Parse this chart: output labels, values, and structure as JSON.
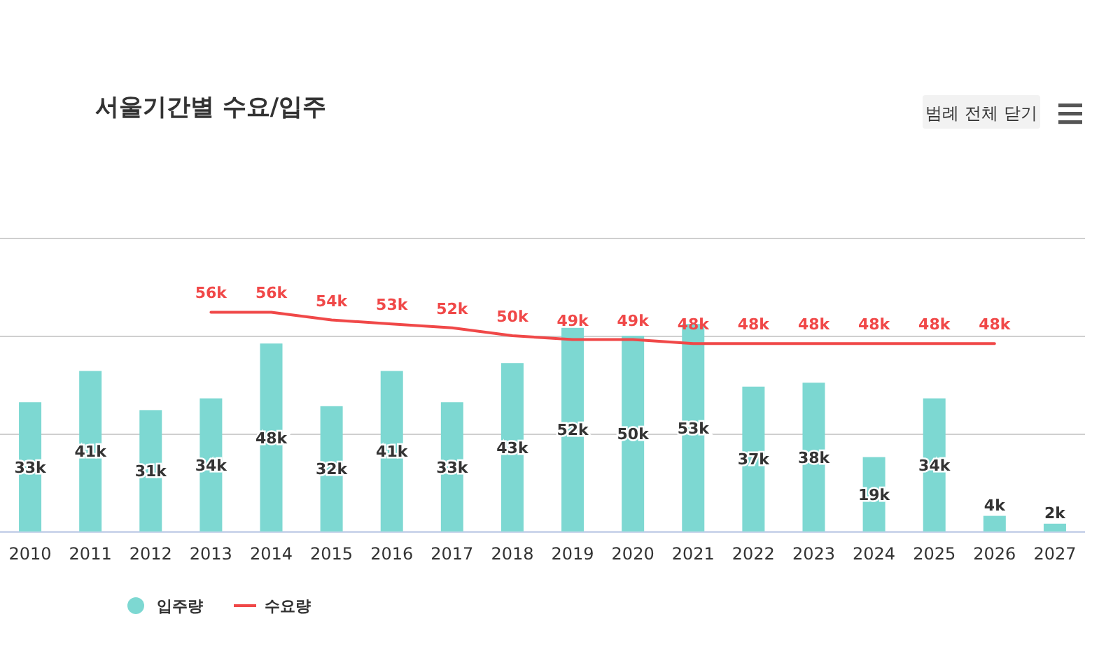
{
  "chart_data": {
    "type": "bar",
    "title": "서울기간별 수요/입주",
    "categories": [
      "2010",
      "2011",
      "2012",
      "2013",
      "2014",
      "2015",
      "2016",
      "2017",
      "2018",
      "2019",
      "2020",
      "2021",
      "2022",
      "2023",
      "2024",
      "2025",
      "2026",
      "2027"
    ],
    "series": [
      {
        "name": "입주량",
        "color": "#7dd8d2",
        "values": [
          33,
          41,
          31,
          34,
          48,
          32,
          41,
          33,
          43,
          52,
          50,
          53,
          37,
          38,
          19,
          34,
          4,
          2
        ],
        "value_labels": [
          "33k",
          "41k",
          "31k",
          "34k",
          "48k",
          "32k",
          "41k",
          "33k",
          "43k",
          "52k",
          "50k",
          "53k",
          "37k",
          "38k",
          "19k",
          "34k",
          "4k",
          "2k"
        ]
      },
      {
        "name": "수요량",
        "type": "line",
        "color": "#f04848",
        "values": [
          null,
          null,
          null,
          56,
          56,
          54,
          53,
          52,
          50,
          49,
          49,
          48,
          48,
          48,
          48,
          48,
          48,
          null
        ],
        "value_labels": [
          null,
          null,
          null,
          "56k",
          "56k",
          "54k",
          "53k",
          "52k",
          "50k",
          "49k",
          "49k",
          "48k",
          "48k",
          "48k",
          "48k",
          "48k",
          "48k",
          null
        ]
      }
    ],
    "ylim": [
      0,
      75
    ],
    "yticks": [
      {
        "value": 0,
        "label": null
      },
      {
        "value": 25,
        "label": null
      },
      {
        "value": 50,
        "label": null
      },
      {
        "value": 75,
        "label": null
      }
    ],
    "grid": "y",
    "legend": "bottom",
    "marker": "none",
    "line_style": "solid",
    "annotations": [
      "범례 전체 닫기"
    ]
  }
}
